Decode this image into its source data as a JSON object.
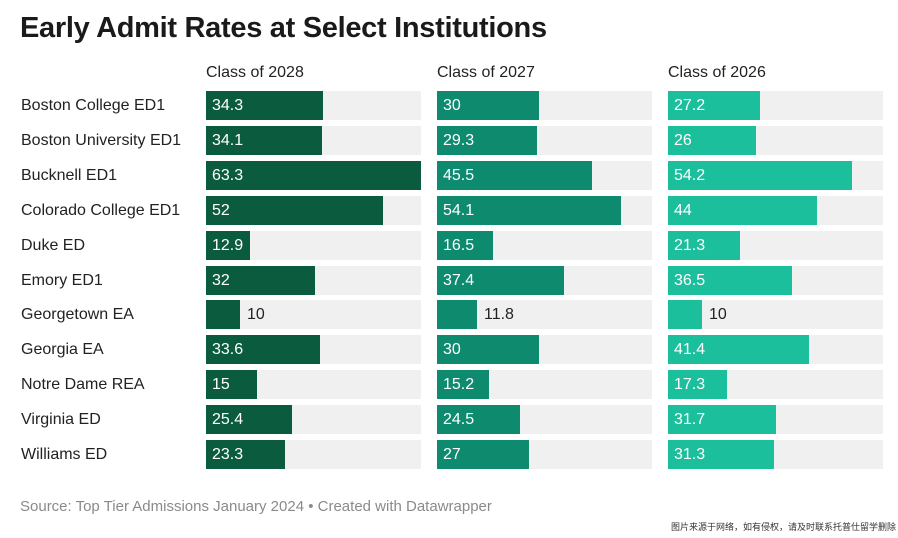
{
  "chart_data": {
    "type": "bar",
    "title": "Early Admit Rates at Select Institutions",
    "categories": [
      "Boston College ED1",
      "Boston University ED1",
      "Bucknell ED1",
      "Colorado College ED1",
      "Duke ED",
      "Emory ED1",
      "Georgetown EA",
      "Georgia EA",
      "Notre Dame REA",
      "Virginia ED",
      "Williams ED"
    ],
    "series": [
      {
        "name": "Class of 2028",
        "color": "#0b5c3e",
        "values": [
          34.3,
          34.1,
          63.3,
          52,
          12.9,
          32,
          10,
          33.6,
          15,
          25.4,
          23.3
        ]
      },
      {
        "name": "Class of 2027",
        "color": "#0e8a6e",
        "values": [
          30,
          29.3,
          45.5,
          54.1,
          16.5,
          37.4,
          11.8,
          30,
          15.2,
          24.5,
          27
        ]
      },
      {
        "name": "Class of 2026",
        "color": "#1bbf9c",
        "values": [
          27.2,
          26,
          54.2,
          44,
          21.3,
          36.5,
          10,
          41.4,
          17.3,
          31.7,
          31.3
        ]
      }
    ],
    "xlim": [
      0,
      63.3
    ],
    "xlabel": "",
    "ylabel": ""
  },
  "source": "Source: Top Tier Admissions January 2024 • Created with Datawrapper",
  "watermark": "图片来源于网络，如有侵权，请及时联系托普仕留学删除"
}
